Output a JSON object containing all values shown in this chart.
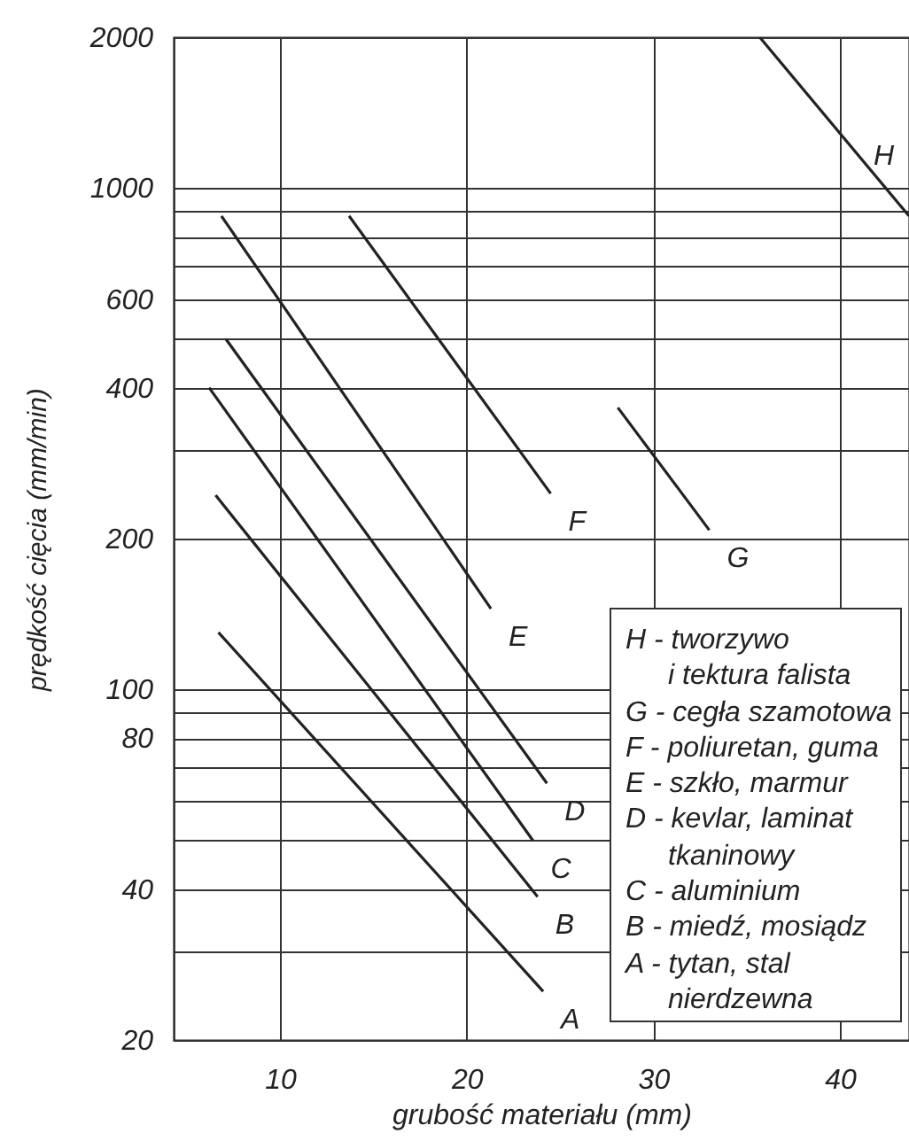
{
  "chart_data": {
    "type": "line",
    "xlabel": "grubość materiału (mm)",
    "ylabel": "prędkość cięcia (mm/min)",
    "log": "y",
    "grid": true,
    "legend": false,
    "marker": "none",
    "line_style": "solid",
    "xlim": [
      4.3,
      43.7
    ],
    "xticks": [
      10,
      20,
      30,
      40
    ],
    "ylim": [
      20,
      2000
    ],
    "yticks": [
      20,
      {
        "value": 30,
        "label": null
      },
      40,
      {
        "value": 50,
        "label": null
      },
      {
        "value": 60,
        "label": null
      },
      {
        "value": 70,
        "label": null
      },
      80,
      {
        "value": 90,
        "label": null
      },
      100,
      200,
      {
        "value": 300,
        "label": null
      },
      400,
      {
        "value": 500,
        "label": null
      },
      600,
      {
        "value": 700,
        "label": null
      },
      {
        "value": 800,
        "label": null
      },
      {
        "value": 900,
        "label": null
      },
      1000,
      2000
    ],
    "series": [
      {
        "name": "A",
        "color": "#222222",
        "x": [
          6.7,
          24.1
        ],
        "values": [
          130,
          25
        ]
      },
      {
        "name": "B",
        "color": "#222222",
        "x": [
          6.55,
          23.8
        ],
        "values": [
          244,
          38.6
        ]
      },
      {
        "name": "C",
        "color": "#222222",
        "x": [
          6.2,
          23.55
        ],
        "values": [
          400,
          50
        ]
      },
      {
        "name": "D",
        "color": "#222222",
        "x": [
          7.1,
          24.3
        ],
        "values": [
          500,
          65
        ]
      },
      {
        "name": "E",
        "color": "#222222",
        "x": [
          6.86,
          21.3
        ],
        "values": [
          880,
          145
        ]
      },
      {
        "name": "F",
        "color": "#222222",
        "x": [
          13.7,
          24.5
        ],
        "values": [
          880,
          246
        ]
      },
      {
        "name": "G",
        "color": "#222222",
        "x": [
          28.1,
          33.0
        ],
        "values": [
          365,
          208
        ]
      },
      {
        "name": "H",
        "color": "#222222",
        "x": [
          35.7,
          43.7
        ],
        "values": [
          2000,
          880
        ]
      }
    ],
    "annotations": [
      "H - tworzywo\ni tektura falista",
      "G - cegła szamotowa",
      "F - poliuretan, guma",
      "E - szkło, marmur",
      "D - kevlar, laminat\ntkaninowy",
      "C - aluminium",
      "B - miedź, mosiądz",
      "A - tytan, stal\nnierdzewna"
    ]
  }
}
